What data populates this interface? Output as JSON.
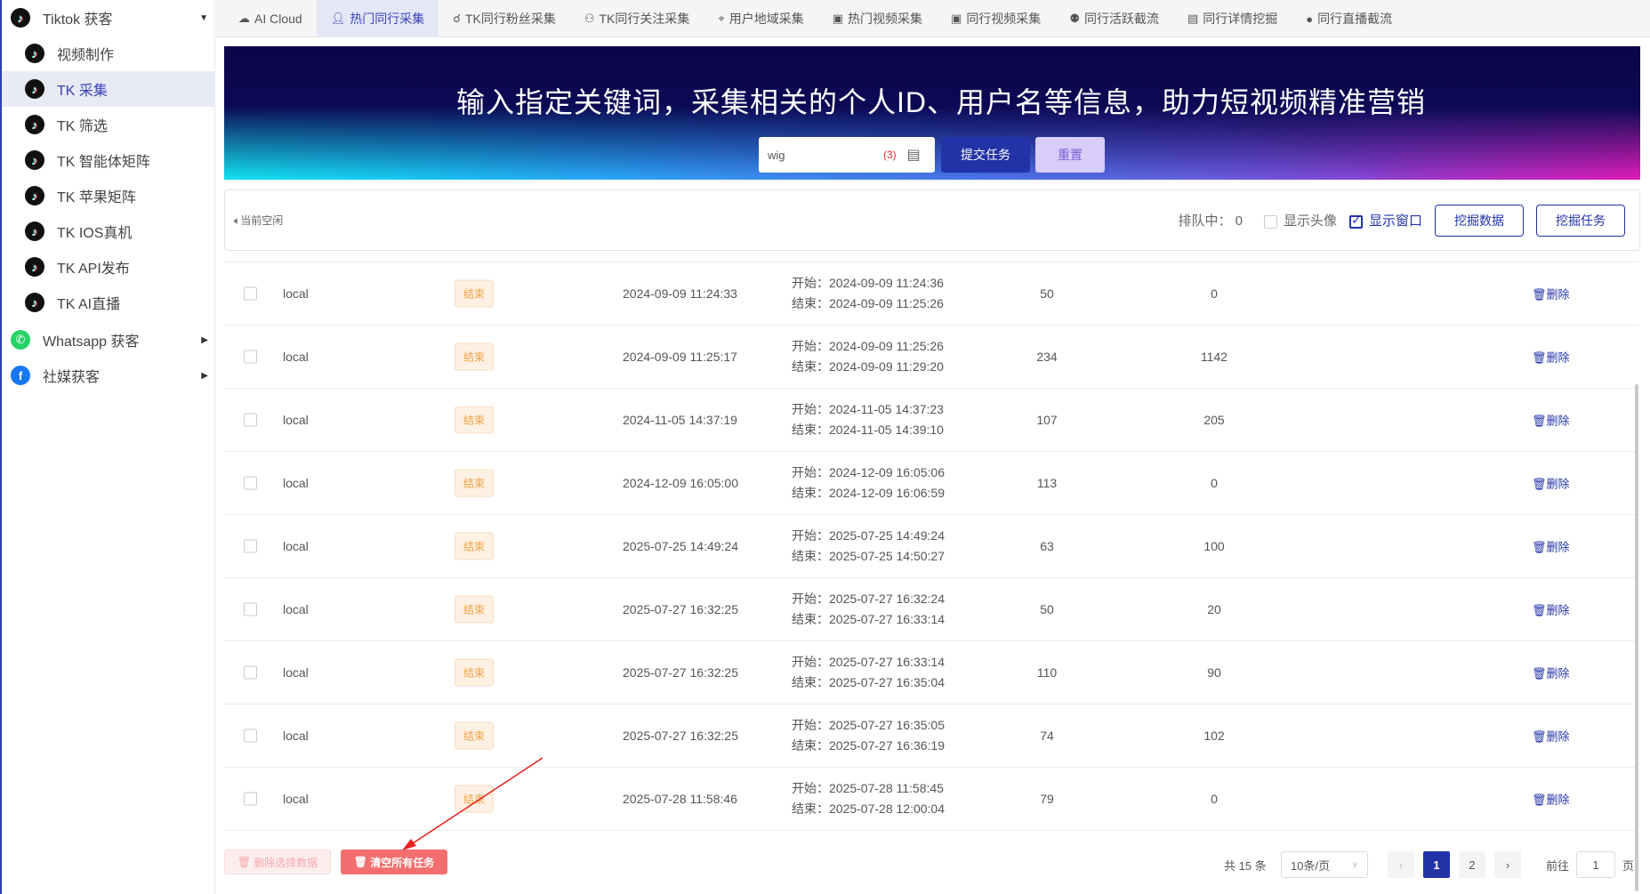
{
  "sidebar": {
    "group": "Tiktok 获客",
    "items": [
      "视频制作",
      "TK 采集",
      "TK 筛选",
      "TK 智能体矩阵",
      "TK 苹果矩阵",
      "TK IOS真机",
      "TK API发布",
      "TK AI直播"
    ],
    "selected": "TK 采集",
    "whatsapp": "Whatsapp 获客",
    "social": "社媒获客"
  },
  "tabs": [
    {
      "label": "AI Cloud",
      "icon": "cloud-icon"
    },
    {
      "label": "热门同行采集",
      "icon": "user-icon",
      "active": true
    },
    {
      "label": "TK同行粉丝采集",
      "icon": "fans-icon"
    },
    {
      "label": "TK同行关注采集",
      "icon": "follow-icon"
    },
    {
      "label": "用户地域采集",
      "icon": "location-icon"
    },
    {
      "label": "热门视频采集",
      "icon": "video-icon"
    },
    {
      "label": "同行视频采集",
      "icon": "video-icon"
    },
    {
      "label": "同行活跃截流",
      "icon": "users-icon"
    },
    {
      "label": "同行详情挖掘",
      "icon": "document-icon"
    },
    {
      "label": "同行直播截流",
      "icon": "live-icon"
    }
  ],
  "banner": {
    "title": "输入指定关键词，采集相关的个人ID、用户名等信息，助力短视频精准营销",
    "search_value": "wig",
    "count": "(3)",
    "submit": "提交任务",
    "reset": "重置"
  },
  "toolbar": {
    "status": "当前空闲",
    "queue_label": "排队中：",
    "queue_count": "0",
    "show_avatar": "显示头像",
    "show_avatar_checked": false,
    "show_window": "显示窗口",
    "show_window_checked": true,
    "mine_data": "挖掘数据",
    "mine_task": "挖掘任务"
  },
  "rows": [
    {
      "source": "local",
      "status": "结束",
      "created": "2024-09-09 11:24:33",
      "start": "开始：2024-09-09 11:24:36",
      "end": "结束：2024-09-09 11:25:26",
      "n1": "50",
      "n2": "0"
    },
    {
      "source": "local",
      "status": "结束",
      "created": "2024-09-09 11:25:17",
      "start": "开始：2024-09-09 11:25:26",
      "end": "结束：2024-09-09 11:29:20",
      "n1": "234",
      "n2": "1142"
    },
    {
      "source": "local",
      "status": "结束",
      "created": "2024-11-05 14:37:19",
      "start": "开始：2024-11-05 14:37:23",
      "end": "结束：2024-11-05 14:39:10",
      "n1": "107",
      "n2": "205"
    },
    {
      "source": "local",
      "status": "结束",
      "created": "2024-12-09 16:05:00",
      "start": "开始：2024-12-09 16:05:06",
      "end": "结束：2024-12-09 16:06:59",
      "n1": "113",
      "n2": "0"
    },
    {
      "source": "local",
      "status": "结束",
      "created": "2025-07-25 14:49:24",
      "start": "开始：2025-07-25 14:49:24",
      "end": "结束：2025-07-25 14:50:27",
      "n1": "63",
      "n2": "100"
    },
    {
      "source": "local",
      "status": "结束",
      "created": "2025-07-27 16:32:25",
      "start": "开始：2025-07-27 16:32:24",
      "end": "结束：2025-07-27 16:33:14",
      "n1": "50",
      "n2": "20"
    },
    {
      "source": "local",
      "status": "结束",
      "created": "2025-07-27 16:32:25",
      "start": "开始：2025-07-27 16:33:14",
      "end": "结束：2025-07-27 16:35:04",
      "n1": "110",
      "n2": "90"
    },
    {
      "source": "local",
      "status": "结束",
      "created": "2025-07-27 16:32:25",
      "start": "开始：2025-07-27 16:35:05",
      "end": "结束：2025-07-27 16:36:19",
      "n1": "74",
      "n2": "102"
    },
    {
      "source": "local",
      "status": "结束",
      "created": "2025-07-28 11:58:46",
      "start": "开始：2025-07-28 11:58:45",
      "end": "结束：2025-07-28 12:00:04",
      "n1": "79",
      "n2": "0"
    }
  ],
  "row_action": "删除",
  "footer": {
    "delete_selected": "删除选择数据",
    "clear_all": "清空所有任务",
    "total": "共 15 条",
    "page_size": "10条/页",
    "pages": [
      "1",
      "2"
    ],
    "current_page": "1",
    "goto_label": "前往",
    "goto_value": "1",
    "page_suffix": "页"
  },
  "colors": {
    "accent": "#2233a8",
    "danger": "#f36e6e",
    "badge": "#f0a040",
    "annotation_arrow": "#e82020"
  }
}
